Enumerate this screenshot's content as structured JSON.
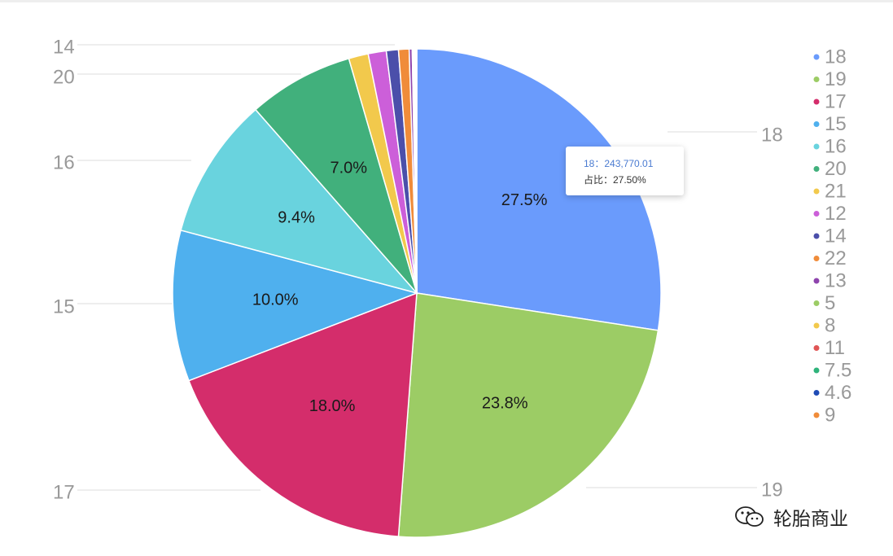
{
  "chart_data": {
    "type": "pie",
    "slices": [
      {
        "label": "18",
        "value": 27.5,
        "data_label": "27.5%",
        "color": "#6a9bfc",
        "outer_label": "18"
      },
      {
        "label": "19",
        "value": 23.8,
        "data_label": "23.8%",
        "color": "#9ccc65",
        "outer_label": "19"
      },
      {
        "label": "17",
        "value": 18.0,
        "data_label": "18.0%",
        "color": "#d42d6b",
        "outer_label": "17"
      },
      {
        "label": "15",
        "value": 10.0,
        "data_label": "10.0%",
        "color": "#4fb0ee",
        "outer_label": "15"
      },
      {
        "label": "16",
        "value": 9.4,
        "data_label": "9.4%",
        "color": "#69d3de",
        "outer_label": "16"
      },
      {
        "label": "20",
        "value": 7.0,
        "data_label": "7.0%",
        "color": "#41b07c",
        "outer_label": "20"
      },
      {
        "label": "21",
        "value": 1.3,
        "data_label": "",
        "color": "#f2c94c",
        "outer_label": ""
      },
      {
        "label": "12",
        "value": 1.2,
        "data_label": "",
        "color": "#cc5fd9",
        "outer_label": ""
      },
      {
        "label": "14",
        "value": 0.8,
        "data_label": "",
        "color": "#4b4faa",
        "outer_label": "14"
      },
      {
        "label": "22",
        "value": 0.7,
        "data_label": "",
        "color": "#f08c3a",
        "outer_label": ""
      },
      {
        "label": "13",
        "value": 0.2,
        "data_label": "",
        "color": "#8e44ad",
        "outer_label": ""
      },
      {
        "label": "5",
        "value": 0.05,
        "data_label": "",
        "color": "#9ccc65",
        "outer_label": ""
      },
      {
        "label": "8",
        "value": 0.05,
        "data_label": "",
        "color": "#f2c94c",
        "outer_label": ""
      },
      {
        "label": "11",
        "value": 0.05,
        "data_label": "",
        "color": "#e05555",
        "outer_label": ""
      },
      {
        "label": "7.5",
        "value": 0.05,
        "data_label": "",
        "color": "#2fb37b",
        "outer_label": ""
      },
      {
        "label": "4.6",
        "value": 0.05,
        "data_label": "",
        "color": "#1f4bb5",
        "outer_label": ""
      },
      {
        "label": "9",
        "value": 0.05,
        "data_label": "",
        "color": "#f08c3a",
        "outer_label": ""
      }
    ],
    "legend": [
      "18",
      "19",
      "17",
      "15",
      "16",
      "20",
      "21",
      "12",
      "14",
      "22",
      "13",
      "5",
      "8",
      "11",
      "7.5",
      "4.6",
      "9"
    ],
    "legend_position": "right"
  },
  "tooltip": {
    "line1": "18：243,770.01",
    "line2": "占比：27.50%"
  },
  "watermark": {
    "text": "轮胎商业"
  }
}
